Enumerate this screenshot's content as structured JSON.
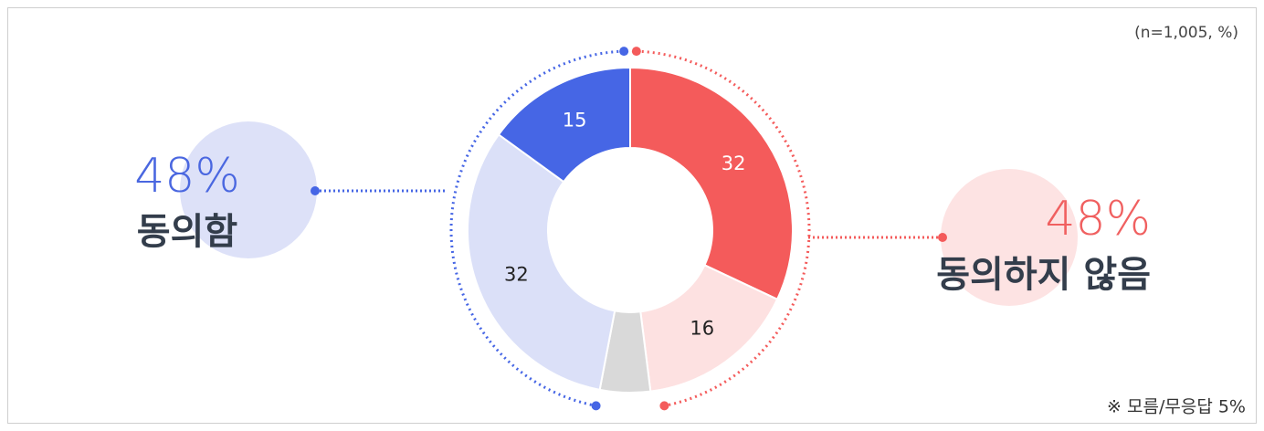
{
  "chart_data": {
    "type": "donut",
    "note_top": "(n=1,005, %)",
    "note_bottom": "※ 모름/무응답 5%",
    "values": [
      32,
      16,
      5,
      32,
      15
    ],
    "colors": [
      "#f45b5b",
      "#fde1e1",
      "#d9d9d9",
      "#dbe0f8",
      "#4666e5"
    ],
    "label_colors": [
      "#ffffff",
      "#222222",
      null,
      "#222222",
      "#ffffff"
    ],
    "groups": [
      {
        "percent": 48,
        "percent_label": "48%",
        "name": "동의함",
        "color": "#4a67e0",
        "bubble": "#dde1f8"
      },
      {
        "percent": 48,
        "percent_label": "48%",
        "name": "동의하지 않음",
        "color": "#f06060",
        "bubble": "#fde3e3"
      }
    ]
  }
}
